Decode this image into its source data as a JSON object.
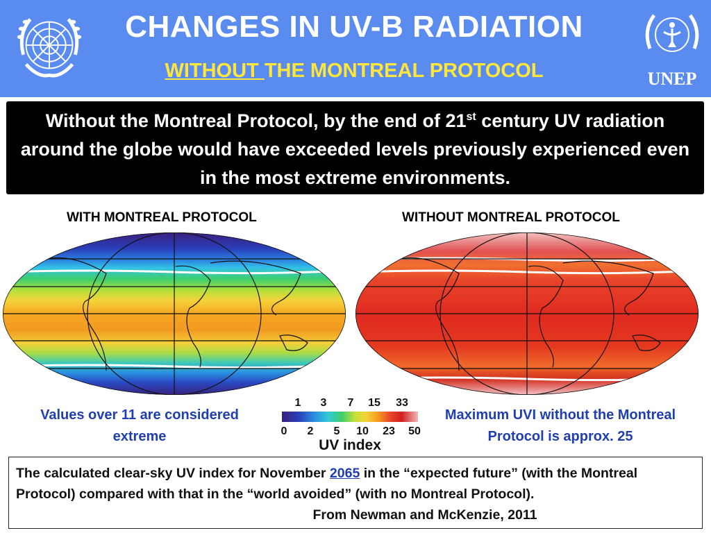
{
  "header": {
    "title": "CHANGES IN UV-B RADIATION",
    "subtitle_underlined": "WITHOUT ",
    "subtitle_rest": "THE MONTREAL PROTOCOL",
    "background_color": "#5a8cf0",
    "subtitle_color": "#ffe63a",
    "left_logo_icon": "un-emblem-icon",
    "right_logo_icon": "unep-emblem-icon",
    "right_logo_text": "UNEP"
  },
  "statement": {
    "part1": "Without the Montreal Protocol, by the end of 21",
    "superscript": "st",
    "part2": " century UV radiation around the globe would have exceeded levels previously experienced even in the most extreme environments."
  },
  "maps": {
    "left_label": "WITH MONTREAL PROTOCOL",
    "right_label": "WITHOUT MONTREAL PROTOCOL"
  },
  "notes": {
    "left": "Values over 11 are considered extreme",
    "right": "Maximum UVI without the Montreal Protocol is approx. 25"
  },
  "colorbar": {
    "top_ticks": [
      "1",
      "3",
      "7",
      "15",
      "33"
    ],
    "bottom_ticks": [
      "0",
      "2",
      "5",
      "10",
      "23",
      "50"
    ],
    "label": "UV index"
  },
  "source": {
    "text1": "The calculated clear-sky UV index for November ",
    "year": "2065",
    "text2": " in the “expected future” (with the Montreal Protocol) compared with that in the “world avoided” (with no Montreal Protocol).",
    "citation": "From Newman and McKenzie, 2011"
  }
}
